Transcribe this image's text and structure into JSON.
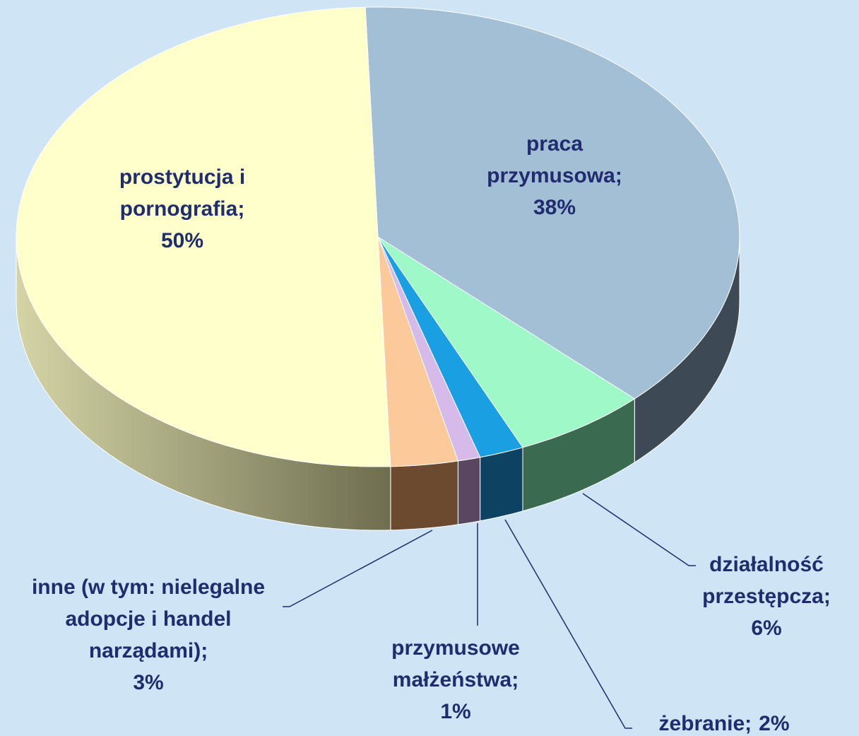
{
  "chart_data": {
    "type": "pie3d",
    "categories": [
      "praca przymusowa;",
      "działalność przestępcza;",
      "żebranie;",
      "przymusowe małżeństwa;",
      "inne (w tym: nielegalne adopcje i handel narządami);",
      "prostytucja i pornografia;"
    ],
    "values": [
      38,
      6,
      2,
      1,
      3,
      50
    ],
    "value_labels": [
      "38%",
      "6%",
      "2%",
      "1%",
      "3%",
      "50%"
    ],
    "colors": [
      "#a3bfd6",
      "#9ef8c8",
      "#1a9fe2",
      "#d6bae9",
      "#fbc99a",
      "#ffffcc"
    ]
  }
}
